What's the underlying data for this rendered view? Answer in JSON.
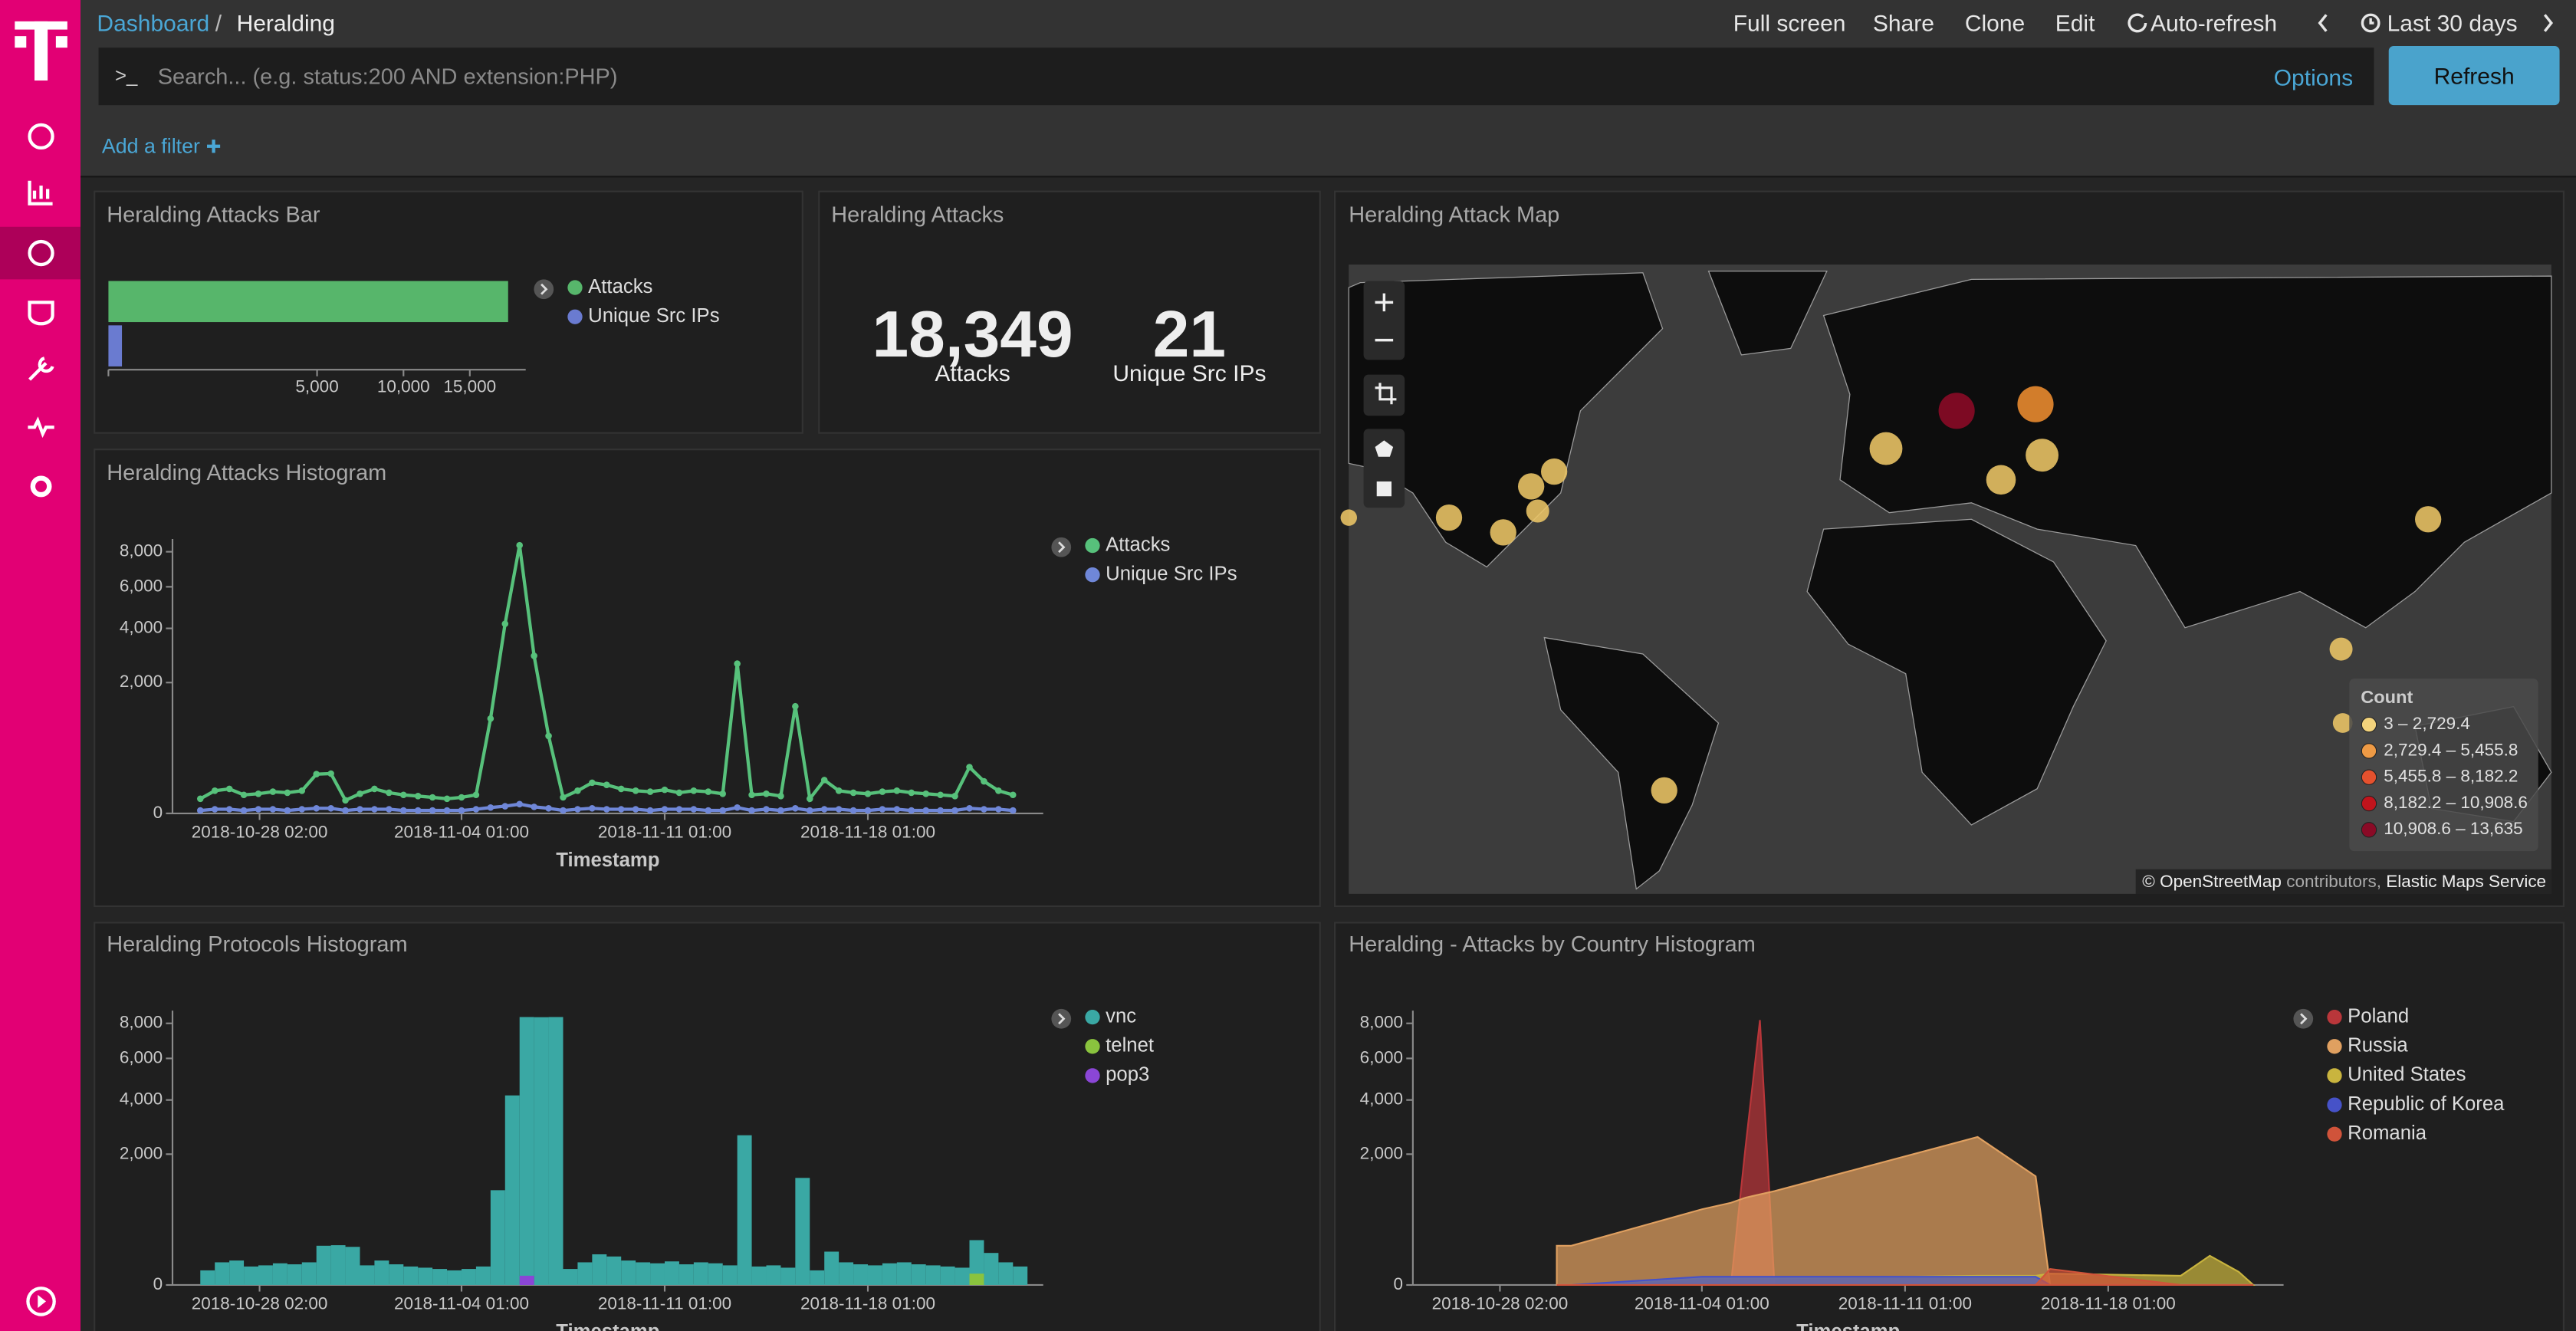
{
  "nav": {
    "breadcrumbs": [
      "Dashboard",
      "Heralding"
    ],
    "separator": "/",
    "menu": [
      "Full screen",
      "Share",
      "Clone",
      "Edit",
      "Auto-refresh",
      "Last 30 days"
    ]
  },
  "query": {
    "prompt": ">_",
    "placeholder": "Search... (e.g. status:200 AND extension:PHP)",
    "options": "Options",
    "refresh": "Refresh",
    "add_filter": "Add a filter"
  },
  "panels": {
    "metrics": {
      "title": "Heralding Attacks",
      "items": [
        {
          "value": "18,349",
          "label": "Attacks"
        },
        {
          "value": "21",
          "label": "Unique Src IPs"
        }
      ]
    },
    "map": {
      "title": "Heralding Attack Map",
      "legend_title": "Count",
      "legend": [
        {
          "label": "3 – 2,729.4",
          "color": "#f3d37c"
        },
        {
          "label": "2,729.4 – 5,455.8",
          "color": "#ee9a45"
        },
        {
          "label": "5,455.8 – 8,182.2",
          "color": "#e5512e"
        },
        {
          "label": "8,182.2 – 10,908.6",
          "color": "#c0141c"
        },
        {
          "label": "10,908.6 – 13,635",
          "color": "#8a0a26"
        }
      ],
      "attribution": [
        "© OpenStreetMap",
        "contributors,",
        "Elastic Maps Service"
      ]
    }
  },
  "chart_data": [
    {
      "type": "bar",
      "orientation": "horizontal",
      "title": "Heralding Attacks Bar",
      "categories": [
        null
      ],
      "series": [
        {
          "name": "Attacks",
          "color": "#57b66b",
          "values": [
            18349
          ]
        },
        {
          "name": "Unique Src IPs",
          "color": "#6a7bd0",
          "values": [
            21
          ]
        }
      ],
      "x_scale": "sqrt",
      "xlim": [
        0,
        20000
      ],
      "xticks": [
        {
          "value": 5000,
          "label": "5,000"
        },
        {
          "value": 10000,
          "label": "10,000"
        },
        {
          "value": 15000,
          "label": "15,000"
        }
      ]
    },
    {
      "type": "line",
      "title": "Heralding Attacks Histogram",
      "x_label": "Timestamp",
      "x": [
        "2018-10-26 01:00",
        "2018-10-26 13:00",
        "2018-10-27 01:00",
        "2018-10-27 13:00",
        "2018-10-28 01:00",
        "2018-10-28 13:00",
        "2018-10-29 01:00",
        "2018-10-29 13:00",
        "2018-10-30 01:00",
        "2018-10-30 13:00",
        "2018-10-31 01:00",
        "2018-10-31 13:00",
        "2018-11-01 01:00",
        "2018-11-01 13:00",
        "2018-11-02 01:00",
        "2018-11-02 13:00",
        "2018-11-03 01:00",
        "2018-11-03 13:00",
        "2018-11-04 01:00",
        "2018-11-04 13:00",
        "2018-11-05 01:00",
        "2018-11-05 13:00",
        "2018-11-06 01:00",
        "2018-11-06 13:00",
        "2018-11-07 01:00",
        "2018-11-07 13:00",
        "2018-11-08 01:00",
        "2018-11-08 13:00",
        "2018-11-09 01:00",
        "2018-11-09 13:00",
        "2018-11-10 01:00",
        "2018-11-10 13:00",
        "2018-11-11 01:00",
        "2018-11-11 13:00",
        "2018-11-12 01:00",
        "2018-11-12 13:00",
        "2018-11-13 01:00",
        "2018-11-13 13:00",
        "2018-11-14 01:00",
        "2018-11-14 13:00",
        "2018-11-15 01:00",
        "2018-11-15 13:00",
        "2018-11-16 01:00",
        "2018-11-16 13:00",
        "2018-11-17 01:00",
        "2018-11-17 13:00",
        "2018-11-18 01:00",
        "2018-11-18 13:00",
        "2018-11-19 01:00",
        "2018-11-19 13:00",
        "2018-11-20 01:00",
        "2018-11-20 13:00",
        "2018-11-21 01:00",
        "2018-11-21 13:00",
        "2018-11-22 01:00",
        "2018-11-22 13:00",
        "2018-11-23 01:00"
      ],
      "xlim": [
        "2018-10-25 02:00",
        "2018-11-24 02:00"
      ],
      "xticks": [
        "2018-10-28 02:00",
        "2018-11-04 01:00",
        "2018-11-11 01:00",
        "2018-11-18 01:00"
      ],
      "y_scale": "sqrt",
      "ylim": [
        0,
        8800
      ],
      "yticks": [
        0,
        {
          "value": 2000,
          "label": "2,000"
        },
        {
          "value": 4000,
          "label": "4,000"
        },
        {
          "value": 6000,
          "label": "6,000"
        },
        {
          "value": 8000,
          "label": "8,000"
        }
      ],
      "series": [
        {
          "name": "Attacks",
          "color": "#57c17b",
          "values": [
            25,
            60,
            70,
            40,
            45,
            55,
            50,
            60,
            180,
            185,
            20,
            45,
            70,
            50,
            40,
            35,
            30,
            25,
            30,
            40,
            1050,
            4200,
            8400,
            2900,
            700,
            30,
            60,
            110,
            95,
            70,
            60,
            55,
            65,
            50,
            60,
            55,
            45,
            2620,
            40,
            45,
            35,
            1340,
            25,
            130,
            60,
            50,
            45,
            55,
            60,
            50,
            45,
            40,
            35,
            250,
            120,
            60,
            40
          ]
        },
        {
          "name": "Unique Src IPs",
          "color": "#6f87d8",
          "values": [
            1,
            2,
            2,
            1,
            2,
            2,
            1,
            2,
            3,
            3,
            1,
            2,
            2,
            2,
            1,
            1,
            1,
            1,
            1,
            2,
            4,
            6,
            10,
            5,
            3,
            1,
            2,
            3,
            2,
            2,
            2,
            1,
            2,
            2,
            2,
            1,
            1,
            4,
            1,
            2,
            1,
            3,
            1,
            2,
            2,
            1,
            1,
            2,
            2,
            1,
            1,
            1,
            1,
            3,
            2,
            2,
            1
          ]
        }
      ]
    },
    {
      "type": "bar",
      "title": "Heralding Protocols Histogram",
      "x_label": "Timestamp",
      "x": [
        "2018-10-26 01:00",
        "2018-10-26 13:00",
        "2018-10-27 01:00",
        "2018-10-27 13:00",
        "2018-10-28 01:00",
        "2018-10-28 13:00",
        "2018-10-29 01:00",
        "2018-10-29 13:00",
        "2018-10-30 01:00",
        "2018-10-30 13:00",
        "2018-10-31 01:00",
        "2018-10-31 13:00",
        "2018-11-01 01:00",
        "2018-11-01 13:00",
        "2018-11-02 01:00",
        "2018-11-02 13:00",
        "2018-11-03 01:00",
        "2018-11-03 13:00",
        "2018-11-04 01:00",
        "2018-11-04 13:00",
        "2018-11-05 01:00",
        "2018-11-05 13:00",
        "2018-11-06 01:00",
        "2018-11-06 13:00",
        "2018-11-07 01:00",
        "2018-11-07 13:00",
        "2018-11-08 01:00",
        "2018-11-08 13:00",
        "2018-11-09 01:00",
        "2018-11-09 13:00",
        "2018-11-10 01:00",
        "2018-11-10 13:00",
        "2018-11-11 01:00",
        "2018-11-11 13:00",
        "2018-11-12 01:00",
        "2018-11-12 13:00",
        "2018-11-13 01:00",
        "2018-11-13 13:00",
        "2018-11-14 01:00",
        "2018-11-14 13:00",
        "2018-11-15 01:00",
        "2018-11-15 13:00",
        "2018-11-16 01:00",
        "2018-11-16 13:00",
        "2018-11-17 01:00",
        "2018-11-17 13:00",
        "2018-11-18 01:00",
        "2018-11-18 13:00",
        "2018-11-19 01:00",
        "2018-11-19 13:00",
        "2018-11-20 01:00",
        "2018-11-20 13:00",
        "2018-11-21 01:00",
        "2018-11-21 13:00",
        "2018-11-22 01:00",
        "2018-11-22 13:00",
        "2018-11-23 01:00"
      ],
      "xlim": [
        "2018-10-25 02:00",
        "2018-11-24 02:00"
      ],
      "xticks": [
        "2018-10-28 02:00",
        "2018-11-04 01:00",
        "2018-11-11 01:00",
        "2018-11-18 01:00"
      ],
      "y_scale": "sqrt",
      "ylim": [
        0,
        8800
      ],
      "yticks": [
        0,
        {
          "value": 2000,
          "label": "2,000"
        },
        {
          "value": 4000,
          "label": "4,000"
        },
        {
          "value": 6000,
          "label": "6,000"
        },
        {
          "value": 8000,
          "label": "8,000"
        }
      ],
      "series": [
        {
          "name": "vnc",
          "color": "#3aa8a4",
          "values": [
            25,
            60,
            70,
            40,
            45,
            55,
            50,
            60,
            180,
            185,
            170,
            45,
            70,
            50,
            40,
            35,
            30,
            25,
            30,
            40,
            1050,
            4200,
            8390,
            8380,
            8390,
            30,
            60,
            110,
            95,
            70,
            60,
            55,
            65,
            50,
            60,
            55,
            45,
            2620,
            40,
            45,
            35,
            1340,
            25,
            130,
            60,
            50,
            45,
            55,
            60,
            50,
            45,
            40,
            35,
            235,
            120,
            60,
            40
          ]
        },
        {
          "name": "telnet",
          "color": "#8ac33e",
          "values": [
            0,
            0,
            0,
            0,
            0,
            0,
            0,
            0,
            0,
            0,
            0,
            0,
            0,
            0,
            0,
            0,
            0,
            0,
            0,
            0,
            0,
            0,
            0,
            0,
            0,
            0,
            0,
            0,
            0,
            0,
            0,
            0,
            0,
            0,
            0,
            0,
            0,
            0,
            0,
            0,
            0,
            0,
            0,
            0,
            0,
            0,
            0,
            0,
            0,
            0,
            0,
            0,
            0,
            15,
            0,
            0,
            0
          ]
        },
        {
          "name": "pop3",
          "color": "#8b46d6",
          "values": [
            0,
            0,
            0,
            0,
            0,
            0,
            0,
            0,
            0,
            0,
            0,
            0,
            0,
            0,
            0,
            0,
            0,
            0,
            0,
            0,
            0,
            0,
            10,
            0,
            0,
            0,
            0,
            0,
            0,
            0,
            0,
            0,
            0,
            0,
            0,
            0,
            0,
            0,
            0,
            0,
            0,
            0,
            0,
            0,
            0,
            0,
            0,
            0,
            0,
            0,
            0,
            0,
            0,
            0,
            0,
            0,
            0
          ]
        }
      ]
    },
    {
      "type": "area",
      "title": "Heralding - Attacks by Country Histogram",
      "x_label": "Timestamp",
      "x": [
        "2018-10-30 01:00",
        "2018-10-30 13:00",
        "2018-11-04 01:00",
        "2018-11-05 01:00",
        "2018-11-05 13:00",
        "2018-11-06 01:00",
        "2018-11-06 13:00",
        "2018-11-13 13:00",
        "2018-11-15 13:00",
        "2018-11-16 01:00",
        "2018-11-20 13:00",
        "2018-11-21 13:00",
        "2018-11-22 13:00",
        "2018-11-23 01:00"
      ],
      "xlim": [
        "2018-10-25 02:00",
        "2018-11-24 02:00"
      ],
      "xticks": [
        "2018-10-28 02:00",
        "2018-11-04 01:00",
        "2018-11-11 01:00",
        "2018-11-18 01:00"
      ],
      "y_scale": "sqrt",
      "ylim": [
        0,
        8800
      ],
      "yticks": [
        0,
        {
          "value": 2000,
          "label": "2,000"
        },
        {
          "value": 4000,
          "label": "4,000"
        },
        {
          "value": 6000,
          "label": "6,000"
        },
        {
          "value": 8000,
          "label": "8,000"
        }
      ],
      "series": [
        {
          "name": "Poland",
          "color": "#b9363a",
          "values": [
            0,
            0,
            0,
            0,
            2200,
            8200,
            0,
            0,
            0,
            0,
            0,
            0,
            0,
            0
          ]
        },
        {
          "name": "Russia",
          "color": "#e0a060",
          "values": [
            180,
            180,
            670,
            790,
            890,
            960,
            1030,
            2560,
            1380,
            0,
            0,
            0,
            0,
            0
          ]
        },
        {
          "name": "United States",
          "color": "#c9b43e",
          "values": [
            0,
            0,
            5,
            5,
            5,
            5,
            5,
            10,
            10,
            15,
            10,
            100,
            20,
            0
          ]
        },
        {
          "name": "Republic of Korea",
          "color": "#4652c8",
          "values": [
            0,
            0,
            8,
            8,
            8,
            8,
            8,
            8,
            8,
            0,
            0,
            0,
            0,
            0
          ]
        },
        {
          "name": "Romania",
          "color": "#d0533a",
          "values": [
            0,
            0,
            0,
            0,
            0,
            0,
            0,
            0,
            0,
            30,
            0,
            0,
            0,
            0
          ]
        }
      ]
    }
  ]
}
